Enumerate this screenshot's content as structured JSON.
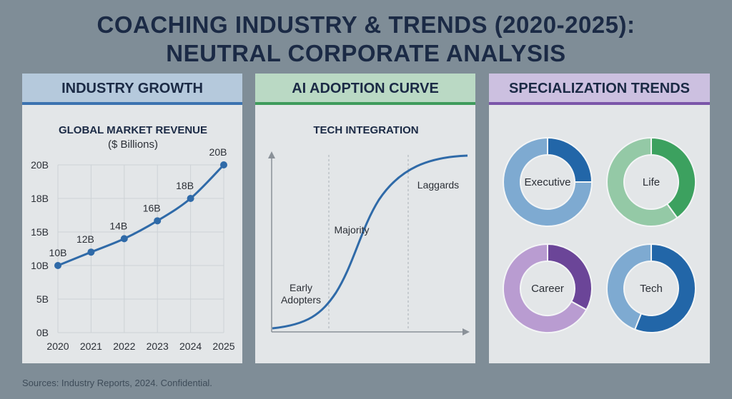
{
  "title": {
    "line1": "COACHING INDUSTRY & TRENDS (2020-2025):",
    "line2": "NEUTRAL CORPORATE ANALYSIS"
  },
  "panels": {
    "growth": {
      "header": "INDUSTRY GROWTH"
    },
    "ai": {
      "header": "AI ADOPTION CURVE"
    },
    "specialization": {
      "header": "SPECIALIZATION TRENDS"
    }
  },
  "footer": "Sources: Industry Reports, 2024. Confidential.",
  "chart_data": [
    {
      "type": "line",
      "title": "GLOBAL MARKET REVENUE",
      "subtitle": "($ Billions)",
      "categories": [
        "2020",
        "2021",
        "2022",
        "2023",
        "2024",
        "2025"
      ],
      "values": [
        10,
        12,
        14,
        16,
        18,
        20
      ],
      "data_labels": [
        "10B",
        "12B",
        "14B",
        "16B",
        "18B",
        "20B"
      ],
      "y_ticks": [
        0,
        5,
        10,
        15,
        18,
        20
      ],
      "y_tick_labels": [
        "0B",
        "5B",
        "10B",
        "15B",
        "18B",
        "20B"
      ],
      "grid": true,
      "color": "#2f6aa8"
    },
    {
      "type": "line",
      "title": "TECH INTEGRATION",
      "shape": "s-curve",
      "annotations": [
        "Early",
        "Adopters",
        "Majority",
        "Laggards"
      ],
      "grid": false,
      "color": "#2f6aa8"
    },
    {
      "type": "pie",
      "donut": true,
      "series": [
        {
          "name": "Executive",
          "value": 0.25,
          "colors": [
            "#2266a8",
            "#7eaad1"
          ]
        },
        {
          "name": "Life",
          "value": 0.4,
          "colors": [
            "#3ca15f",
            "#94c9a6"
          ]
        },
        {
          "name": "Career",
          "value": 0.33,
          "colors": [
            "#6b4598",
            "#b99cd1"
          ]
        },
        {
          "name": "Tech",
          "value": 0.56,
          "colors": [
            "#2266a8",
            "#7eaad1"
          ]
        }
      ]
    }
  ]
}
